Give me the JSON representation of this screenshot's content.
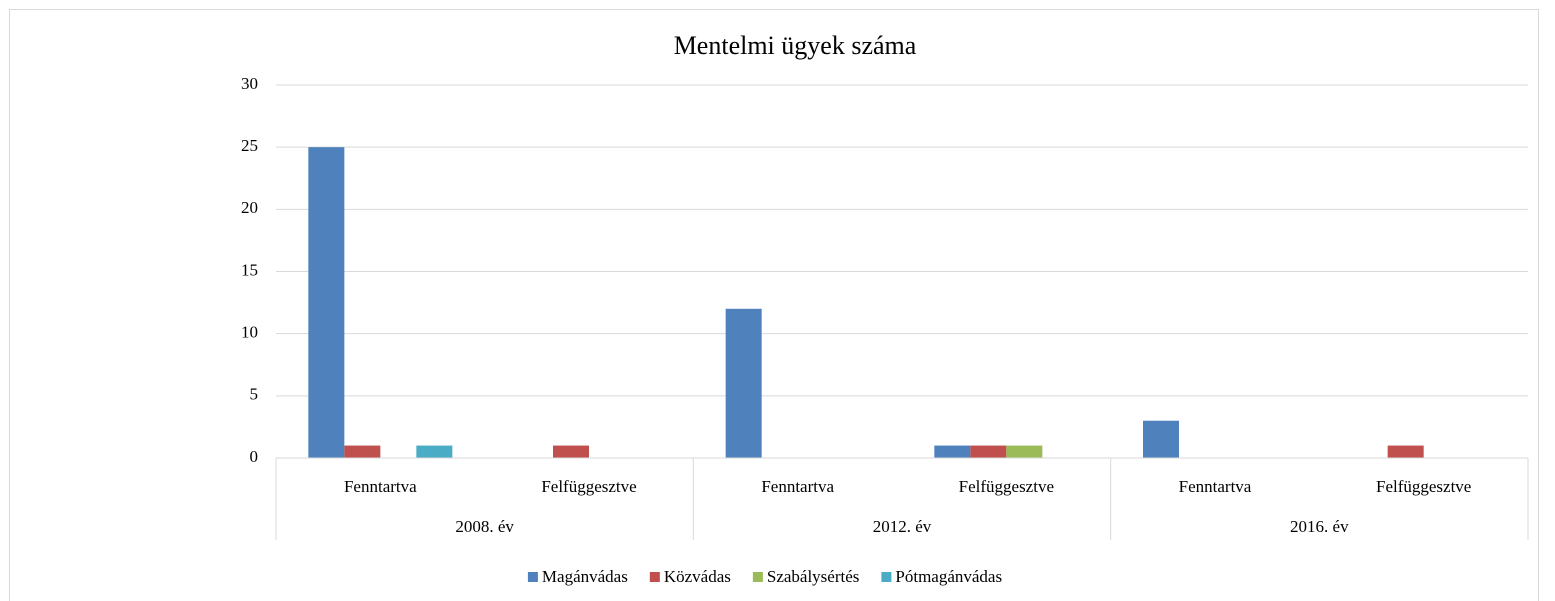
{
  "chart_data": {
    "type": "bar",
    "title": "Mentelmi ügyek száma",
    "categories": [
      "Fenntartva",
      "Felfüggesztve",
      "Fenntartva",
      "Felfüggesztve",
      "Fenntartva",
      "Felfüggesztve"
    ],
    "groups": [
      "2008. év",
      "2012. év",
      "2016. év"
    ],
    "series": [
      {
        "name": "Magánvádas",
        "color": "#4f81bd",
        "values": [
          25,
          null,
          12,
          1,
          3,
          null
        ]
      },
      {
        "name": "Közvádas",
        "color": "#c0504d",
        "values": [
          1,
          1,
          null,
          1,
          null,
          1
        ]
      },
      {
        "name": "Szabálysértés",
        "color": "#9bbb59",
        "values": [
          null,
          null,
          null,
          1,
          null,
          null
        ]
      },
      {
        "name": "Pótmagánvádas",
        "color": "#4bacc6",
        "values": [
          1,
          null,
          null,
          null,
          null,
          null
        ]
      }
    ],
    "ylim": [
      0,
      30
    ],
    "yticks": [
      0,
      5,
      10,
      15,
      20,
      25,
      30
    ],
    "grid": true,
    "legend": "bottom"
  }
}
